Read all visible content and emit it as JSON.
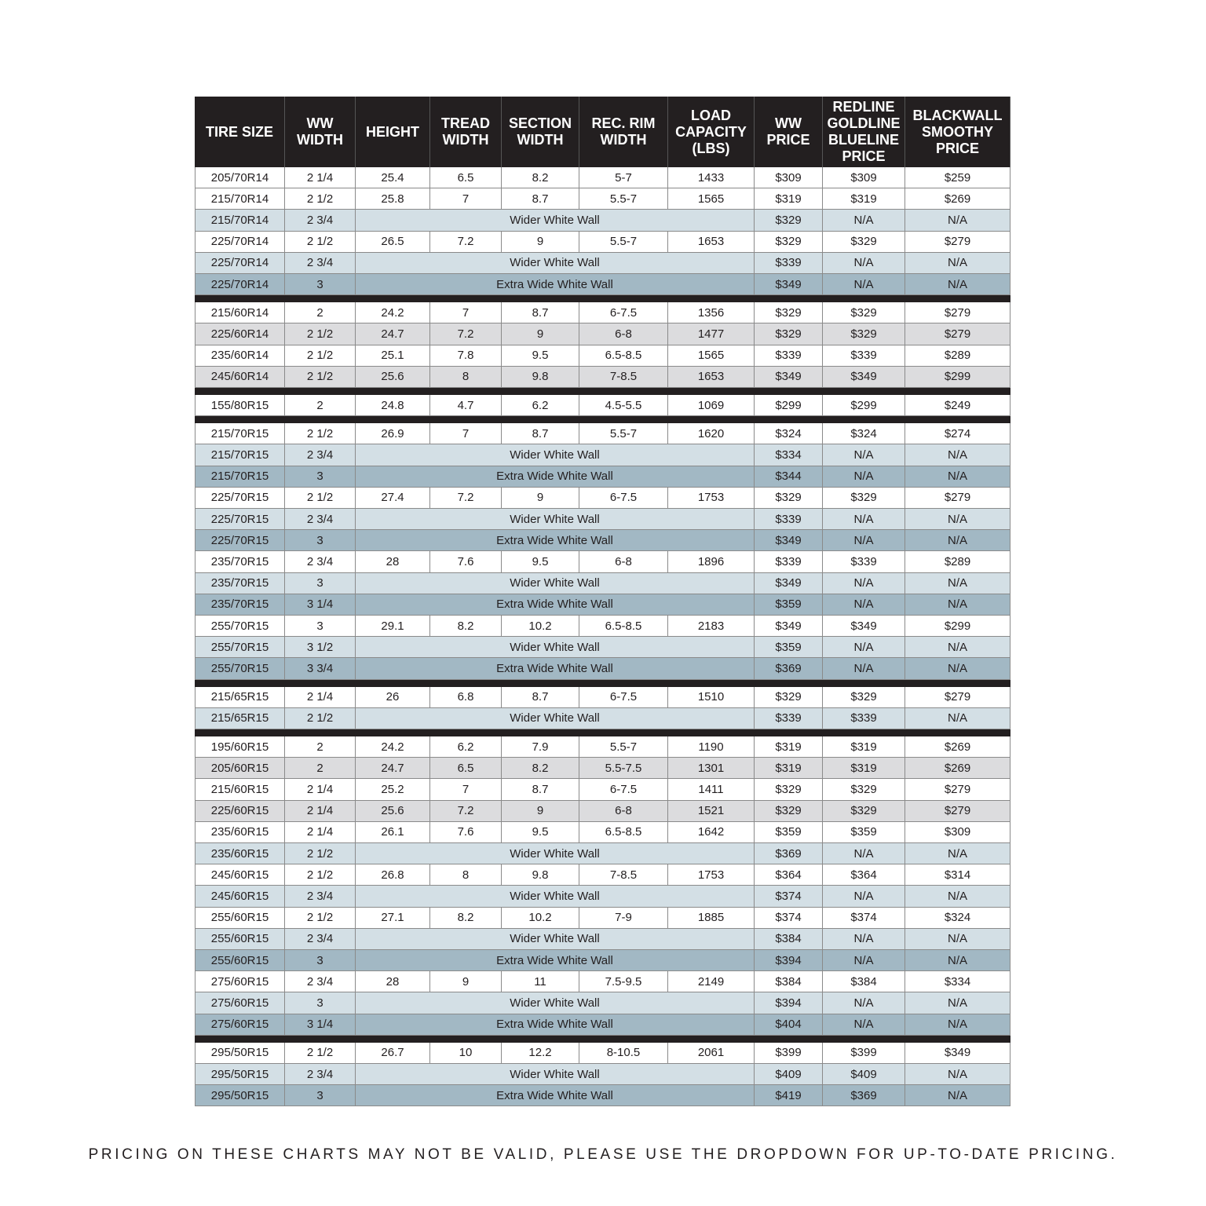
{
  "table": {
    "header": [
      [
        "TIRE SIZE"
      ],
      [
        "WW",
        "WIDTH"
      ],
      [
        "HEIGHT"
      ],
      [
        "TREAD",
        "WIDTH"
      ],
      [
        "SECTION",
        "WIDTH"
      ],
      [
        "REC. RIM",
        "WIDTH"
      ],
      [
        "LOAD",
        "CAPACITY",
        "(LBS)"
      ],
      [
        "WW",
        "PRICE"
      ],
      [
        "REDLINE",
        "GOLDLINE",
        "BLUELINE",
        "PRICE"
      ],
      [
        "BLACKWALL",
        "SMOOTHY",
        "PRICE"
      ]
    ],
    "groups": [
      [
        [
          "205/70R14",
          "2 1/4",
          "25.4",
          "6.5",
          "8.2",
          "5-7",
          "1433",
          "$309",
          "$309",
          "$259"
        ],
        [
          "215/70R14",
          "2 1/2",
          "25.8",
          "7",
          "8.7",
          "5.5-7",
          "1565",
          "$319",
          "$319",
          "$269"
        ],
        [
          "215/70R14",
          "2 3/4",
          "Wider White Wall",
          "$329",
          "N/A",
          "N/A"
        ],
        [
          "225/70R14",
          "2 1/2",
          "26.5",
          "7.2",
          "9",
          "5.5-7",
          "1653",
          "$329",
          "$329",
          "$279"
        ],
        [
          "225/70R14",
          "2 3/4",
          "Wider White Wall",
          "$339",
          "N/A",
          "N/A"
        ],
        [
          "225/70R14",
          "3",
          "Extra Wide White Wall",
          "$349",
          "N/A",
          "N/A"
        ]
      ],
      [
        [
          "215/60R14",
          "2",
          "24.2",
          "7",
          "8.7",
          "6-7.5",
          "1356",
          "$329",
          "$329",
          "$279"
        ],
        [
          "225/60R14",
          "2 1/2",
          "24.7",
          "7.2",
          "9",
          "6-8",
          "1477",
          "$329",
          "$329",
          "$279"
        ],
        [
          "235/60R14",
          "2 1/2",
          "25.1",
          "7.8",
          "9.5",
          "6.5-8.5",
          "1565",
          "$339",
          "$339",
          "$289"
        ],
        [
          "245/60R14",
          "2 1/2",
          "25.6",
          "8",
          "9.8",
          "7-8.5",
          "1653",
          "$349",
          "$349",
          "$299"
        ]
      ],
      [
        [
          "155/80R15",
          "2",
          "24.8",
          "4.7",
          "6.2",
          "4.5-5.5",
          "1069",
          "$299",
          "$299",
          "$249"
        ]
      ],
      [
        [
          "215/70R15",
          "2 1/2",
          "26.9",
          "7",
          "8.7",
          "5.5-7",
          "1620",
          "$324",
          "$324",
          "$274"
        ],
        [
          "215/70R15",
          "2 3/4",
          "Wider White Wall",
          "$334",
          "N/A",
          "N/A"
        ],
        [
          "215/70R15",
          "3",
          "Extra Wide White Wall",
          "$344",
          "N/A",
          "N/A"
        ],
        [
          "225/70R15",
          "2 1/2",
          "27.4",
          "7.2",
          "9",
          "6-7.5",
          "1753",
          "$329",
          "$329",
          "$279"
        ],
        [
          "225/70R15",
          "2 3/4",
          "Wider White Wall",
          "$339",
          "N/A",
          "N/A"
        ],
        [
          "225/70R15",
          "3",
          "Extra Wide White Wall",
          "$349",
          "N/A",
          "N/A"
        ],
        [
          "235/70R15",
          "2 3/4",
          "28",
          "7.6",
          "9.5",
          "6-8",
          "1896",
          "$339",
          "$339",
          "$289"
        ],
        [
          "235/70R15",
          "3",
          "Wider White Wall",
          "$349",
          "N/A",
          "N/A"
        ],
        [
          "235/70R15",
          "3 1/4",
          "Extra Wide White Wall",
          "$359",
          "N/A",
          "N/A"
        ],
        [
          "255/70R15",
          "3",
          "29.1",
          "8.2",
          "10.2",
          "6.5-8.5",
          "2183",
          "$349",
          "$349",
          "$299"
        ],
        [
          "255/70R15",
          "3 1/2",
          "Wider White Wall",
          "$359",
          "N/A",
          "N/A"
        ],
        [
          "255/70R15",
          "3 3/4",
          "Extra Wide White Wall",
          "$369",
          "N/A",
          "N/A"
        ]
      ],
      [
        [
          "215/65R15",
          "2 1/4",
          "26",
          "6.8",
          "8.7",
          "6-7.5",
          "1510",
          "$329",
          "$329",
          "$279"
        ],
        [
          "215/65R15",
          "2 1/2",
          "Wider White Wall",
          "$339",
          "$339",
          "N/A"
        ]
      ],
      [
        [
          "195/60R15",
          "2",
          "24.2",
          "6.2",
          "7.9",
          "5.5-7",
          "1190",
          "$319",
          "$319",
          "$269"
        ],
        [
          "205/60R15",
          "2",
          "24.7",
          "6.5",
          "8.2",
          "5.5-7.5",
          "1301",
          "$319",
          "$319",
          "$269"
        ],
        [
          "215/60R15",
          "2 1/4",
          "25.2",
          "7",
          "8.7",
          "6-7.5",
          "1411",
          "$329",
          "$329",
          "$279"
        ],
        [
          "225/60R15",
          "2 1/4",
          "25.6",
          "7.2",
          "9",
          "6-8",
          "1521",
          "$329",
          "$329",
          "$279"
        ],
        [
          "235/60R15",
          "2 1/4",
          "26.1",
          "7.6",
          "9.5",
          "6.5-8.5",
          "1642",
          "$359",
          "$359",
          "$309"
        ],
        [
          "235/60R15",
          "2 1/2",
          "Wider White Wall",
          "$369",
          "N/A",
          "N/A"
        ],
        [
          "245/60R15",
          "2 1/2",
          "26.8",
          "8",
          "9.8",
          "7-8.5",
          "1753",
          "$364",
          "$364",
          "$314"
        ],
        [
          "245/60R15",
          "2 3/4",
          "Wider White Wall",
          "$374",
          "N/A",
          "N/A"
        ],
        [
          "255/60R15",
          "2 1/2",
          "27.1",
          "8.2",
          "10.2",
          "7-9",
          "1885",
          "$374",
          "$374",
          "$324"
        ],
        [
          "255/60R15",
          "2 3/4",
          "Wider White Wall",
          "$384",
          "N/A",
          "N/A"
        ],
        [
          "255/60R15",
          "3",
          "Extra Wide White Wall",
          "$394",
          "N/A",
          "N/A"
        ],
        [
          "275/60R15",
          "2 3/4",
          "28",
          "9",
          "11",
          "7.5-9.5",
          "2149",
          "$384",
          "$384",
          "$334"
        ],
        [
          "275/60R15",
          "3",
          "Wider White Wall",
          "$394",
          "N/A",
          "N/A"
        ],
        [
          "275/60R15",
          "3 1/4",
          "Extra Wide White Wall",
          "$404",
          "N/A",
          "N/A"
        ]
      ],
      [
        [
          "295/50R15",
          "2 1/2",
          "26.7",
          "10",
          "12.2",
          "8-10.5",
          "2061",
          "$399",
          "$399",
          "$349"
        ],
        [
          "295/50R15",
          "2 3/4",
          "Wider White Wall",
          "$409",
          "$409",
          "N/A"
        ],
        [
          "295/50R15",
          "3",
          "Extra Wide White Wall",
          "$419",
          "$369",
          "N/A"
        ]
      ]
    ]
  },
  "footer": "PRICING ON THESE CHARTS MAY NOT BE VALID, PLEASE USE THE DROPDOWN FOR UP-TO-DATE PRICING."
}
